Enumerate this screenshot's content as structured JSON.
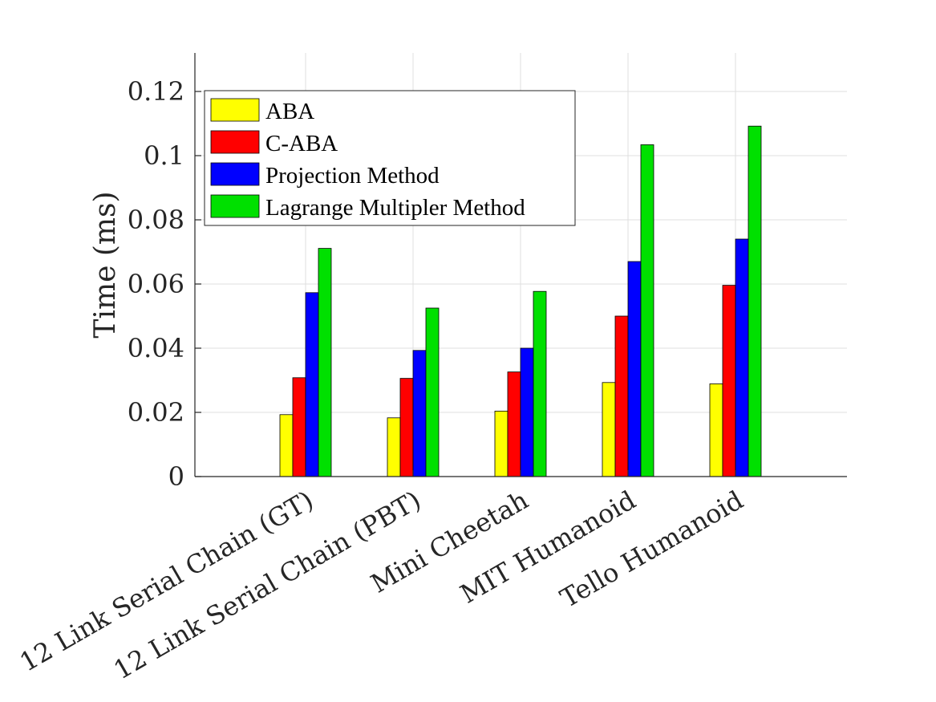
{
  "chart_data": {
    "type": "bar",
    "title": "",
    "xlabel": "",
    "ylabel": "Time (ms)",
    "ylim": [
      0,
      0.132
    ],
    "yticks": [
      0,
      0.02,
      0.04,
      0.06,
      0.08,
      0.1,
      0.12
    ],
    "ytick_labels": [
      "0",
      "0.02",
      "0.04",
      "0.06",
      "0.08",
      "0.1",
      "0.12"
    ],
    "grid": true,
    "legend_position": "top-left",
    "categories": [
      "12 Link Serial Chain (GT)",
      "12 Link Serial Chain (PBT)",
      "Mini Cheetah",
      "MIT Humanoid",
      "Tello Humanoid"
    ],
    "series": [
      {
        "name": "ABA",
        "color": "#ffff00",
        "values": [
          0.0193,
          0.0183,
          0.0204,
          0.0293,
          0.0289
        ]
      },
      {
        "name": "C-ABA",
        "color": "#ff0000",
        "values": [
          0.0308,
          0.0306,
          0.0326,
          0.05,
          0.0596
        ]
      },
      {
        "name": "Projection Method",
        "color": "#0000ff",
        "values": [
          0.0573,
          0.0393,
          0.04,
          0.067,
          0.074
        ]
      },
      {
        "name": "Lagrange Multipler Method",
        "color": "#00e000",
        "values": [
          0.0711,
          0.0525,
          0.0577,
          0.1034,
          0.1092
        ]
      }
    ]
  }
}
